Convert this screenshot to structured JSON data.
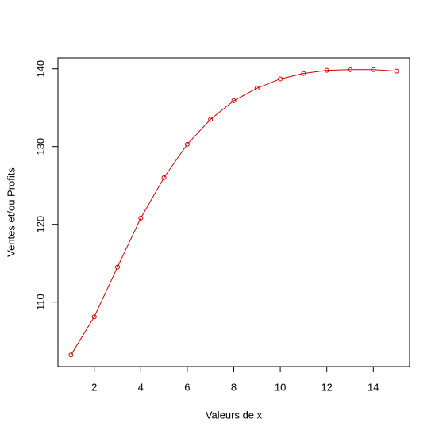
{
  "chart_data": {
    "type": "line",
    "x_label": "Valeurs de x",
    "y_label": "Ventes et/ou Profits",
    "x": [
      1,
      2,
      3,
      4,
      5,
      6,
      7,
      8,
      9,
      10,
      11,
      12,
      13,
      14,
      15
    ],
    "series": [
      {
        "color": "#cc0000",
        "values": [
          103.2,
          108.1,
          114.5,
          120.8,
          126.0,
          130.3,
          133.5,
          135.9,
          137.5,
          138.7,
          139.4,
          139.8,
          139.9,
          139.9,
          139.7
        ]
      }
    ],
    "xlim": [
      0.44,
      15.56
    ],
    "ylim": [
      101.7,
      141.4
    ],
    "xticks": [
      2,
      4,
      6,
      8,
      10,
      12,
      14
    ],
    "yticks": [
      110,
      120,
      130,
      140
    ]
  }
}
